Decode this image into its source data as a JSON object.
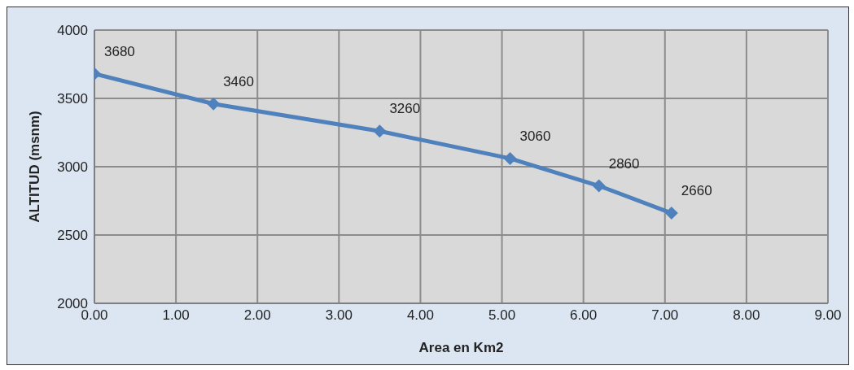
{
  "chart_data": {
    "type": "line",
    "xlabel": "Area en Km2",
    "ylabel": "ALTITUD (msnm)",
    "x": [
      0,
      1.46,
      3.5,
      5.1,
      6.19,
      7.08
    ],
    "series": [
      {
        "color": "#4f81bd",
        "values": [
          3680,
          3460,
          3260,
          3060,
          2860,
          2660
        ]
      }
    ],
    "xlim": [
      0,
      9
    ],
    "xticks": [
      {
        "value": 0,
        "label": "0.00"
      },
      {
        "value": 1,
        "label": "1.00"
      },
      {
        "value": 2,
        "label": "2.00"
      },
      {
        "value": 3,
        "label": "3.00"
      },
      {
        "value": 4,
        "label": "4.00"
      },
      {
        "value": 5,
        "label": "5.00"
      },
      {
        "value": 6,
        "label": "6.00"
      },
      {
        "value": 7,
        "label": "7.00"
      },
      {
        "value": 8,
        "label": "8.00"
      },
      {
        "value": 9,
        "label": "9.00"
      }
    ],
    "ylim": [
      2000,
      4000
    ],
    "yticks": [
      2000,
      2500,
      3000,
      3500,
      4000
    ],
    "grid": true,
    "marker": "diamond",
    "line_style": "solid",
    "data_labels": true,
    "legend": false
  }
}
